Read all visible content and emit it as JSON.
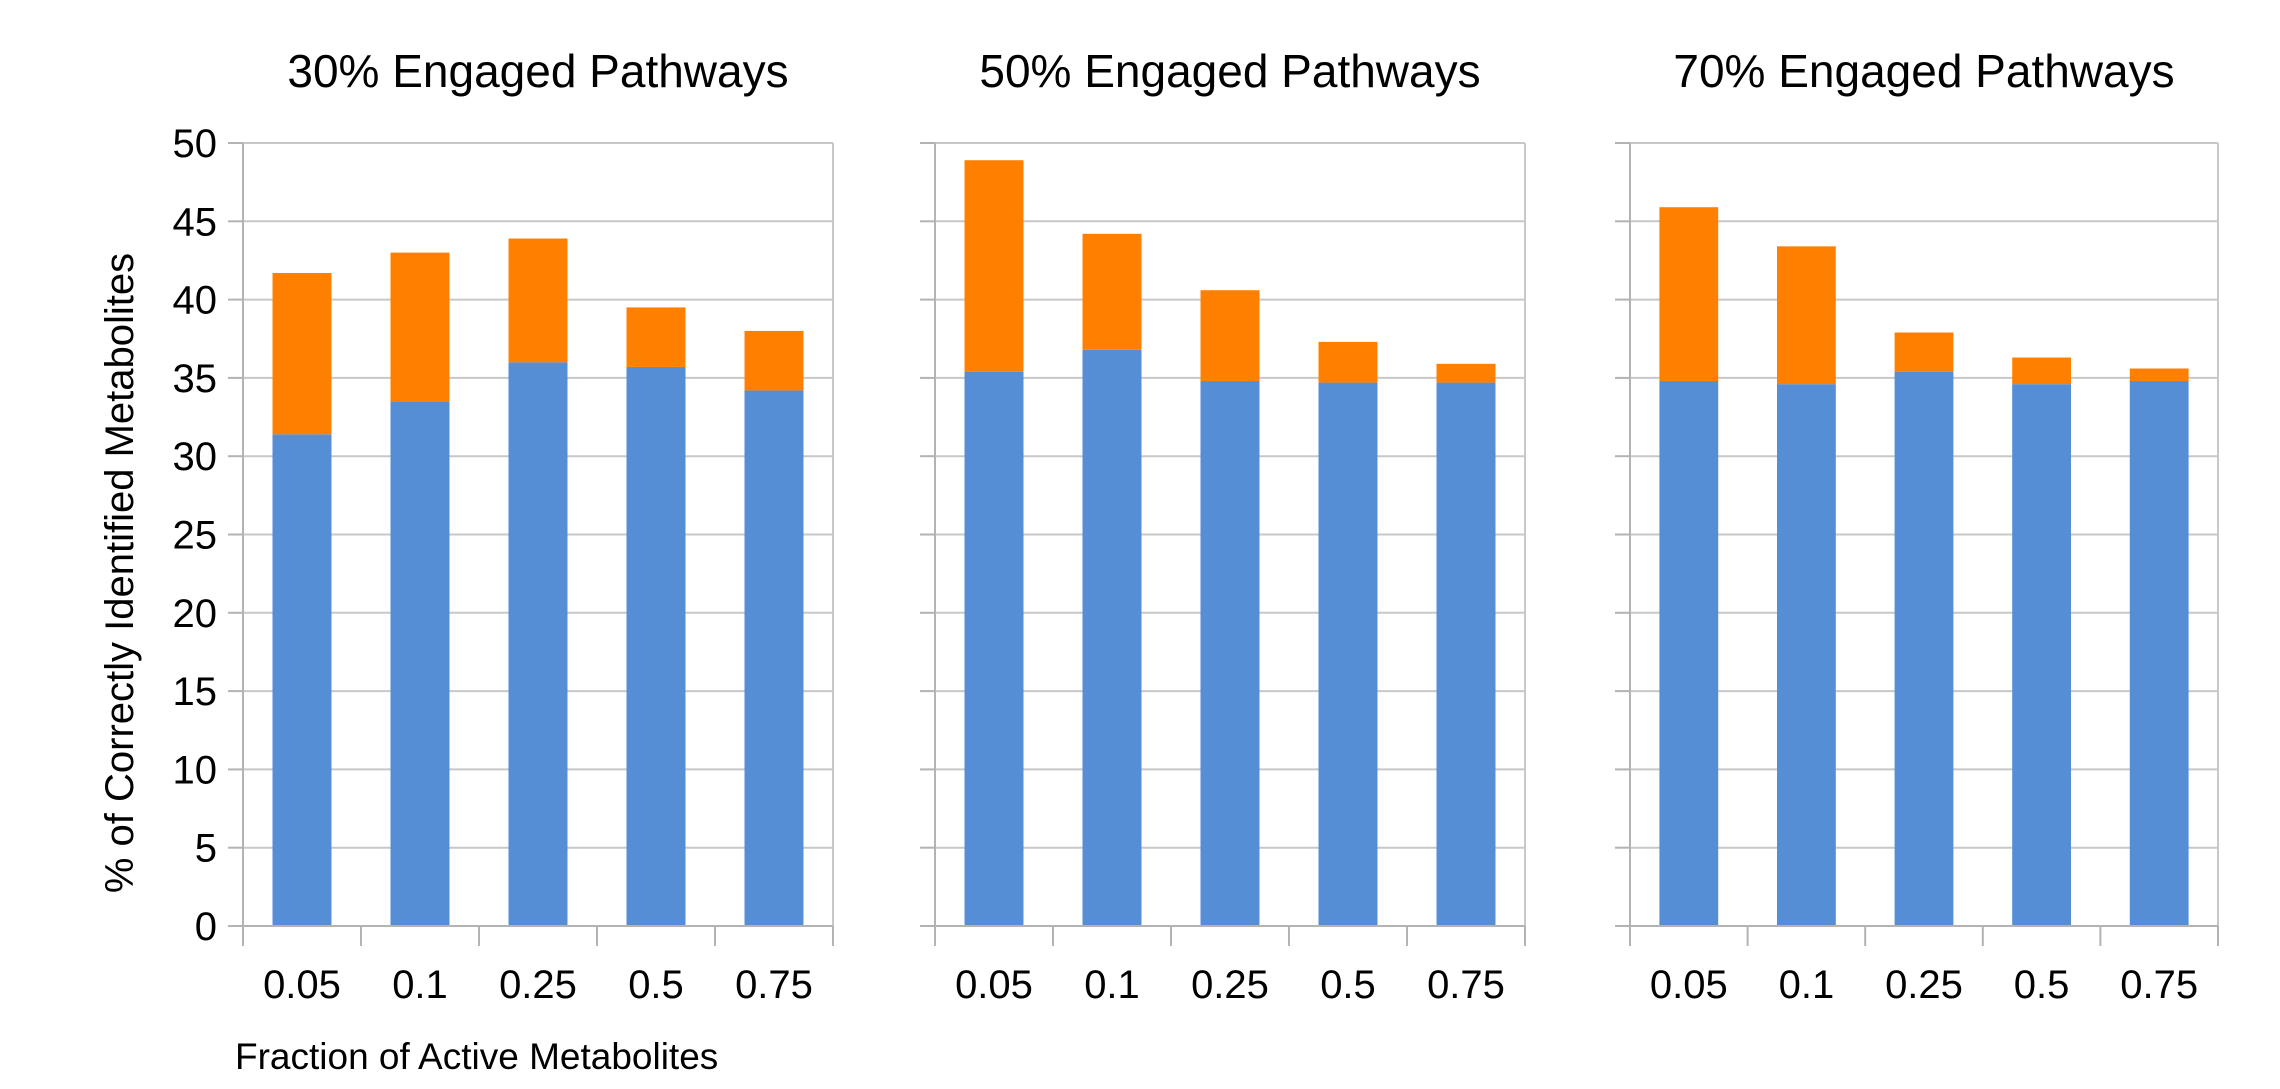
{
  "chart_data": [
    {
      "type": "bar",
      "stacked": true,
      "title": "30% Engaged Pathways",
      "xlabel": "Fraction of Active Metabolites",
      "ylabel": "% of Correctly Identified Metabolites",
      "categories": [
        "0.05",
        "0.1",
        "0.25",
        "0.5",
        "0.75"
      ],
      "ylim": [
        0,
        50
      ],
      "yticks": [
        "0",
        "5",
        "10",
        "15",
        "20",
        "25",
        "30",
        "35",
        "40",
        "45",
        "50"
      ],
      "grid": true,
      "series": [
        {
          "values": [
            31.4,
            33.5,
            36.0,
            35.7,
            34.2
          ],
          "color": "#558ed5"
        },
        {
          "values": [
            10.3,
            9.5,
            7.9,
            3.8,
            3.8
          ],
          "color": "#ff8000"
        }
      ]
    },
    {
      "type": "bar",
      "stacked": true,
      "title": "50% Engaged Pathways",
      "xlabel": "",
      "ylabel": "",
      "categories": [
        "0.05",
        "0.1",
        "0.25",
        "0.5",
        "0.75"
      ],
      "ylim": [
        0,
        50
      ],
      "grid": true,
      "series": [
        {
          "values": [
            35.4,
            36.8,
            34.8,
            34.7,
            34.7
          ],
          "color": "#558ed5"
        },
        {
          "values": [
            13.5,
            7.4,
            5.8,
            2.6,
            1.2
          ],
          "color": "#ff8000"
        }
      ]
    },
    {
      "type": "bar",
      "stacked": true,
      "title": "70% Engaged Pathways",
      "xlabel": "",
      "ylabel": "",
      "categories": [
        "0.05",
        "0.1",
        "0.25",
        "0.5",
        "0.75"
      ],
      "ylim": [
        0,
        50
      ],
      "grid": true,
      "series": [
        {
          "values": [
            34.8,
            34.6,
            35.4,
            34.6,
            34.8
          ],
          "color": "#558ed5"
        },
        {
          "values": [
            11.1,
            8.8,
            2.5,
            1.7,
            0.8
          ],
          "color": "#ff8000"
        }
      ]
    }
  ]
}
